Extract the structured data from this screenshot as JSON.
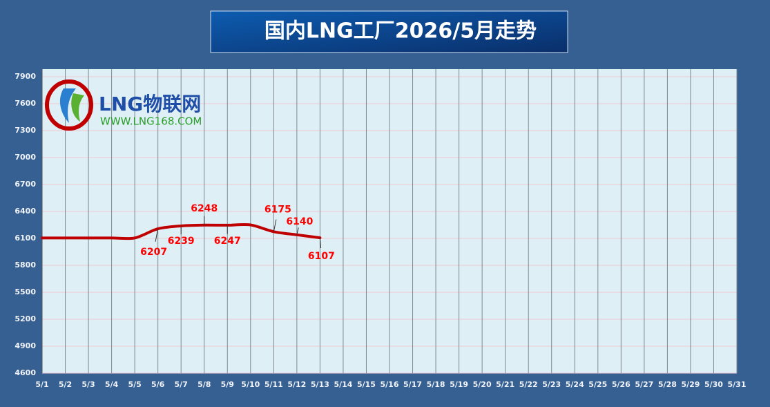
{
  "chart_data": {
    "type": "line",
    "title": "国内LNG工厂2026/5月走势",
    "logo": {
      "name": "LNG物联网",
      "url": "WWW.LNG168.COM"
    },
    "categories": [
      "5/1",
      "5/2",
      "5/3",
      "5/4",
      "5/5",
      "5/6",
      "5/7",
      "5/8",
      "5/9",
      "5/10",
      "5/11",
      "5/12",
      "5/13",
      "5/14",
      "5/15",
      "5/16",
      "5/17",
      "5/18",
      "5/19",
      "5/20",
      "5/21",
      "5/22",
      "5/23",
      "5/24",
      "5/25",
      "5/26",
      "5/27",
      "5/28",
      "5/29",
      "5/30",
      "5/31"
    ],
    "series": [
      {
        "color": "#c00000",
        "values": [
          6105,
          6105,
          6105,
          6105,
          6105,
          6207,
          6239,
          6248,
          6247,
          6250,
          6175,
          6140,
          6107,
          null,
          null,
          null,
          null,
          null,
          null,
          null,
          null,
          null,
          null,
          null,
          null,
          null,
          null,
          null,
          null,
          null,
          null
        ],
        "value_labels": [
          null,
          null,
          null,
          null,
          null,
          "6207",
          "6239",
          "6248",
          "6247",
          null,
          "6175",
          "6140",
          "6107",
          null,
          null,
          null,
          null,
          null,
          null,
          null,
          null,
          null,
          null,
          null,
          null,
          null,
          null,
          null,
          null,
          null,
          null
        ]
      }
    ],
    "ylim": [
      4600,
      7985
    ],
    "yticks": [
      4600,
      4900,
      5200,
      5500,
      5800,
      6100,
      6400,
      6700,
      7000,
      7300,
      7600,
      7900
    ],
    "grid": true
  }
}
